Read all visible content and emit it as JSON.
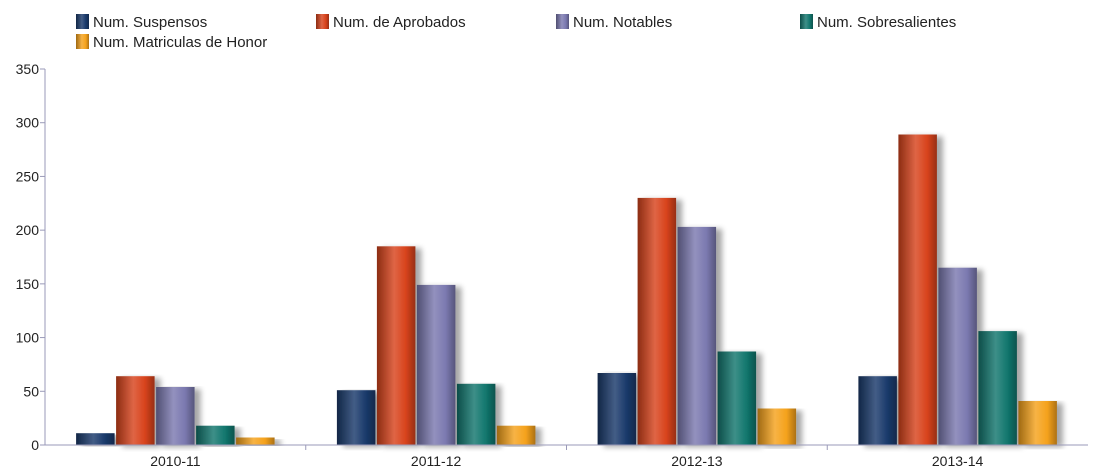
{
  "chart_data": {
    "type": "bar",
    "title": "",
    "xlabel": "",
    "ylabel": "",
    "categories": [
      "2010-11",
      "2011-12",
      "2012-13",
      "2013-14"
    ],
    "series": [
      {
        "name": "Num. Suspensos",
        "color": "#1a3a6b",
        "values": [
          11,
          51,
          67,
          64
        ]
      },
      {
        "name": "Num. de Aprobados",
        "color": "#d8431c",
        "values": [
          64,
          185,
          230,
          289
        ]
      },
      {
        "name": "Num. Notables",
        "color": "#7b79b0",
        "values": [
          54,
          149,
          203,
          165
        ]
      },
      {
        "name": "Num. Sobresalientes",
        "color": "#12776e",
        "values": [
          18,
          57,
          87,
          106
        ]
      },
      {
        "name": "Num. Matriculas de Honor",
        "color": "#f5a21c",
        "values": [
          7,
          18,
          34,
          41
        ]
      }
    ],
    "ylim": [
      0,
      350
    ],
    "yticks": [
      0,
      50,
      100,
      150,
      200,
      250,
      300,
      350
    ],
    "grid": false,
    "legend_position": "top"
  }
}
